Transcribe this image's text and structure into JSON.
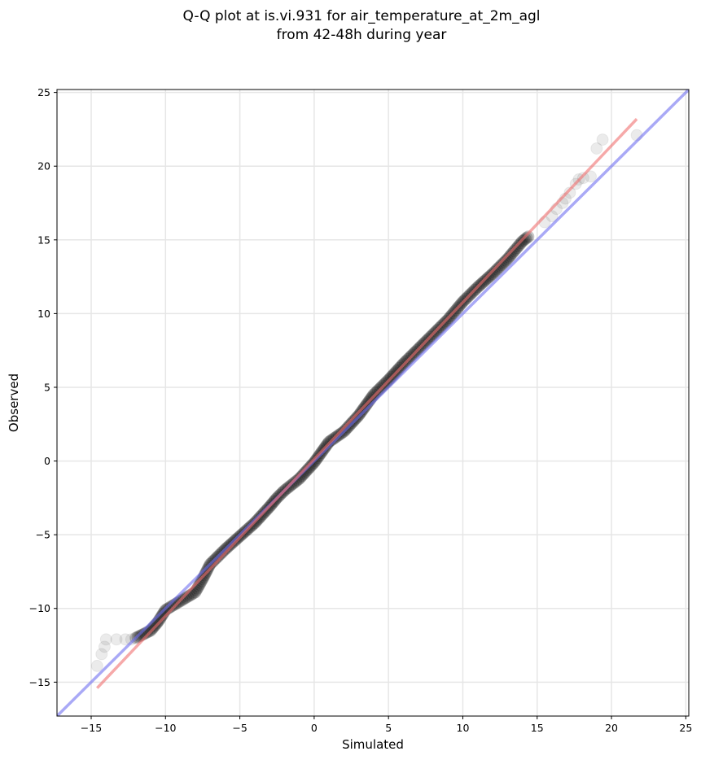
{
  "chart_data": {
    "type": "scatter",
    "title": [
      "Q-Q plot at is.vi.931 for air_temperature_at_2m_agl",
      "from 42-48h during year"
    ],
    "xlabel": "Simulated",
    "ylabel": "Observed",
    "xlim": [
      -17.3,
      25.2
    ],
    "ylim": [
      -17.3,
      25.2
    ],
    "x_ticks": [
      -15,
      -10,
      -5,
      0,
      5,
      10,
      15,
      20,
      25
    ],
    "y_ticks": [
      -15,
      -10,
      -5,
      0,
      5,
      10,
      15,
      20,
      25
    ],
    "x_tick_labels": [
      "−15",
      "−10",
      "−5",
      "0",
      "5",
      "10",
      "15",
      "20",
      "25"
    ],
    "y_tick_labels": [
      "−15",
      "−10",
      "−5",
      "0",
      "5",
      "10",
      "15",
      "20",
      "25"
    ],
    "grid": true,
    "colors": {
      "points": "#000000",
      "identity_line": "#6f6ff0",
      "fit_line": "#f07070",
      "grid": "#e6e6e6"
    },
    "identity_line": {
      "x": [
        -17.3,
        25.2
      ],
      "y": [
        -17.3,
        25.2
      ]
    },
    "fit_line": {
      "x": [
        -14.6,
        21.7
      ],
      "y": [
        -15.4,
        23.2
      ]
    },
    "outlier_points": [
      {
        "x": -14.6,
        "y": -13.9
      },
      {
        "x": -14.3,
        "y": -13.1
      },
      {
        "x": -14.1,
        "y": -12.6
      },
      {
        "x": -14.0,
        "y": -12.1
      },
      {
        "x": -13.3,
        "y": -12.1
      },
      {
        "x": -12.7,
        "y": -12.1
      },
      {
        "x": -12.3,
        "y": -12.1
      },
      {
        "x": 15.5,
        "y": 16.2
      },
      {
        "x": 16.0,
        "y": 16.6
      },
      {
        "x": 16.3,
        "y": 17.1
      },
      {
        "x": 16.7,
        "y": 17.5
      },
      {
        "x": 16.9,
        "y": 17.8
      },
      {
        "x": 17.2,
        "y": 18.2
      },
      {
        "x": 17.6,
        "y": 18.8
      },
      {
        "x": 17.8,
        "y": 19.1
      },
      {
        "x": 18.1,
        "y": 19.2
      },
      {
        "x": 18.6,
        "y": 19.3
      },
      {
        "x": 19.0,
        "y": 21.2
      },
      {
        "x": 19.4,
        "y": 21.8
      },
      {
        "x": 21.7,
        "y": 22.1
      }
    ],
    "main_segments": [
      {
        "x": -12.0,
        "y": -12.0
      },
      {
        "x": -11.0,
        "y": -11.5
      },
      {
        "x": -10.5,
        "y": -10.9
      },
      {
        "x": -10.0,
        "y": -10.1
      },
      {
        "x": -9.0,
        "y": -9.5
      },
      {
        "x": -8.0,
        "y": -8.9
      },
      {
        "x": -7.5,
        "y": -8.0
      },
      {
        "x": -7.0,
        "y": -7.0
      },
      {
        "x": -6.0,
        "y": -6.0
      },
      {
        "x": -5.0,
        "y": -5.1
      },
      {
        "x": -4.0,
        "y": -4.2
      },
      {
        "x": -3.0,
        "y": -3.1
      },
      {
        "x": -2.5,
        "y": -2.5
      },
      {
        "x": -2.0,
        "y": -2.0
      },
      {
        "x": -1.0,
        "y": -1.2
      },
      {
        "x": 0.0,
        "y": -0.1
      },
      {
        "x": 1.0,
        "y": 1.3
      },
      {
        "x": 2.0,
        "y": 2.0
      },
      {
        "x": 3.0,
        "y": 3.1
      },
      {
        "x": 4.0,
        "y": 4.5
      },
      {
        "x": 5.0,
        "y": 5.5
      },
      {
        "x": 6.0,
        "y": 6.6
      },
      {
        "x": 7.0,
        "y": 7.6
      },
      {
        "x": 8.0,
        "y": 8.6
      },
      {
        "x": 9.0,
        "y": 9.6
      },
      {
        "x": 10.0,
        "y": 10.8
      },
      {
        "x": 11.0,
        "y": 11.8
      },
      {
        "x": 12.0,
        "y": 12.7
      },
      {
        "x": 13.0,
        "y": 13.7
      },
      {
        "x": 14.0,
        "y": 14.9
      },
      {
        "x": 14.5,
        "y": 15.3
      }
    ]
  }
}
